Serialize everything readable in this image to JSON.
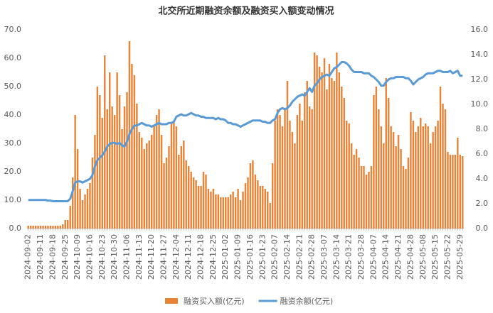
{
  "chart_data": {
    "type": "bar_line",
    "title": "北交所近期融资余额及融资买入额变动情况",
    "categories": [
      "2024-09-02",
      null,
      null,
      null,
      null,
      "2024-09-11",
      null,
      null,
      null,
      null,
      "2024-09-18",
      null,
      null,
      null,
      null,
      "2024-09-25",
      null,
      null,
      null,
      null,
      "2024-10-09",
      null,
      null,
      null,
      null,
      "2024-10-16",
      null,
      null,
      null,
      null,
      "2024-10-23",
      null,
      null,
      null,
      null,
      "2024-10-30",
      null,
      null,
      null,
      null,
      "2024-11-06",
      null,
      null,
      null,
      null,
      "2024-11-13",
      null,
      null,
      null,
      null,
      "2024-11-20",
      null,
      null,
      null,
      null,
      "2024-11-27",
      null,
      null,
      null,
      null,
      "2024-12-04",
      null,
      null,
      null,
      null,
      "2024-12-11",
      null,
      null,
      null,
      null,
      "2024-12-18",
      null,
      null,
      null,
      null,
      "2024-12-25",
      null,
      null,
      null,
      null,
      "2025-01-02",
      null,
      null,
      null,
      null,
      "2025-01-09",
      null,
      null,
      null,
      null,
      "2025-01-16",
      null,
      null,
      null,
      null,
      "2025-01-23",
      null,
      null,
      null,
      null,
      "2025-02-07",
      null,
      null,
      null,
      null,
      "2025-02-14",
      null,
      null,
      null,
      null,
      "2025-02-21",
      null,
      null,
      null,
      null,
      "2025-02-28",
      null,
      null,
      null,
      null,
      "2025-03-07",
      null,
      null,
      null,
      null,
      "2025-03-14",
      null,
      null,
      null,
      null,
      "2025-03-21",
      null,
      null,
      null,
      null,
      "2025-03-28",
      null,
      null,
      null,
      null,
      "2025-04-07",
      null,
      null,
      null,
      null,
      "2025-04-14",
      null,
      null,
      null,
      null,
      "2025-04-21",
      null,
      null,
      null,
      null,
      "2025-04-28",
      null,
      null,
      null,
      null,
      "2025-05-08",
      null,
      null,
      null,
      null,
      "2025-05-15",
      null,
      null,
      null,
      null,
      "2025-05-22",
      null,
      null,
      null,
      null,
      "2025-05-29",
      null
    ],
    "series": [
      {
        "name": "融资买入额(亿元)",
        "color": "#e8843a",
        "kind": "bar",
        "values": [
          1,
          1,
          1,
          1,
          1,
          1,
          1,
          1,
          1,
          1,
          1,
          1,
          1,
          1,
          1.5,
          3,
          3,
          8,
          18,
          40,
          28,
          14,
          10,
          12,
          14,
          16,
          25,
          33,
          50,
          47,
          39,
          61,
          42,
          55,
          43,
          40,
          55,
          47,
          35,
          43,
          48,
          66,
          58,
          54,
          44,
          34,
          32,
          28,
          30,
          31,
          33,
          36,
          40,
          42,
          33,
          23,
          25,
          29,
          37,
          38,
          36,
          26,
          29,
          31,
          24,
          22,
          20,
          18,
          17,
          15,
          15,
          20,
          19,
          14,
          13,
          14,
          12,
          12,
          11,
          11,
          11,
          11,
          12,
          13,
          11,
          14,
          10,
          13,
          16,
          18,
          23,
          24,
          19,
          17,
          15,
          15,
          14,
          13,
          9,
          23,
          38,
          42,
          40,
          36,
          42,
          52,
          38,
          34,
          30,
          40,
          44,
          38,
          48,
          52,
          43,
          42,
          62,
          61,
          57,
          55,
          60,
          49,
          58,
          53,
          52,
          62,
          55,
          50,
          46,
          38,
          37,
          30,
          26,
          28,
          25,
          22,
          22,
          19,
          20,
          22,
          47,
          50,
          42,
          36,
          30,
          53,
          46,
          36,
          34,
          29,
          33,
          28,
          22,
          21,
          25,
          41,
          38,
          34,
          36,
          39,
          36,
          37,
          36,
          30,
          34,
          36,
          38,
          50,
          44,
          42,
          27,
          26,
          26,
          26,
          32,
          26,
          25.5
        ]
      },
      {
        "name": "融资余额(亿元)",
        "color": "#5b9bd5",
        "kind": "line",
        "axis": "y2",
        "values": [
          2.3,
          2.3,
          2.3,
          2.3,
          2.3,
          2.3,
          2.3,
          2.3,
          2.25,
          2.25,
          2.2,
          2.2,
          2.2,
          2.2,
          2.2,
          2.2,
          2.2,
          2.4,
          3.0,
          3.7,
          3.8,
          3.8,
          3.7,
          3.8,
          3.9,
          4.0,
          4.3,
          5.0,
          5.5,
          5.7,
          5.9,
          6.2,
          6.6,
          6.8,
          6.9,
          6.9,
          6.8,
          6.9,
          6.7,
          6.6,
          7.0,
          7.6,
          8.0,
          8.3,
          8.3,
          8.4,
          8.5,
          8.4,
          8.3,
          8.3,
          8.2,
          8.3,
          8.4,
          8.5,
          8.4,
          8.4,
          8.4,
          8.5,
          8.5,
          8.6,
          9.0,
          9.1,
          9.2,
          9.1,
          9.1,
          9.2,
          9.3,
          9.2,
          9.1,
          9.1,
          9.0,
          9.0,
          8.9,
          8.9,
          8.9,
          8.9,
          8.8,
          8.9,
          8.8,
          8.8,
          8.7,
          8.5,
          8.5,
          8.4,
          8.4,
          8.3,
          8.2,
          8.3,
          8.4,
          8.5,
          8.6,
          8.7,
          8.7,
          8.7,
          8.7,
          8.6,
          8.6,
          8.5,
          8.5,
          8.7,
          8.8,
          9.3,
          9.6,
          9.7,
          9.6,
          9.7,
          9.9,
          10.2,
          10.4,
          10.6,
          10.7,
          10.8,
          10.7,
          11.0,
          11.3,
          11.0,
          11.5,
          11.7,
          12.0,
          12.2,
          12.3,
          12.4,
          12.3,
          12.6,
          12.9,
          13.0,
          13.2,
          13.4,
          13.4,
          13.3,
          13.1,
          12.8,
          12.6,
          12.6,
          12.6,
          12.6,
          12.5,
          12.5,
          12.5,
          12.3,
          12.2,
          12.0,
          11.8,
          11.5,
          11.5,
          11.8,
          12.0,
          12.1,
          12.1,
          12.2,
          12.2,
          12.2,
          12.2,
          12.1,
          12.1,
          11.9,
          11.6,
          11.8,
          12.0,
          12.1,
          12.2,
          12.4,
          12.5,
          12.5,
          12.5,
          12.6,
          12.7,
          12.7,
          12.6,
          12.6,
          12.6,
          12.7,
          12.5,
          12.6,
          12.7,
          12.3,
          12.3
        ]
      }
    ],
    "ylim": [
      0,
      70
    ],
    "yticks": [
      {
        "value": 0,
        "label": "0.0"
      },
      {
        "value": 10,
        "label": "10.0"
      },
      {
        "value": 20,
        "label": "20.0"
      },
      {
        "value": 30,
        "label": "30.0"
      },
      {
        "value": 40,
        "label": "40.0"
      },
      {
        "value": 50,
        "label": "50.0"
      },
      {
        "value": 60,
        "label": "60.0"
      },
      {
        "value": 70,
        "label": "70.0"
      }
    ],
    "y2lim": [
      0,
      16
    ],
    "y2ticks": [
      {
        "value": 0,
        "label": "0.0"
      },
      {
        "value": 2,
        "label": "2.0"
      },
      {
        "value": 4,
        "label": "4.0"
      },
      {
        "value": 6,
        "label": "6.0"
      },
      {
        "value": 8,
        "label": "8.0"
      },
      {
        "value": 10,
        "label": "10.0"
      },
      {
        "value": 12,
        "label": "12.0"
      },
      {
        "value": 14,
        "label": "14.0"
      },
      {
        "value": 16,
        "label": "16.0"
      }
    ],
    "legend": "bottom"
  }
}
